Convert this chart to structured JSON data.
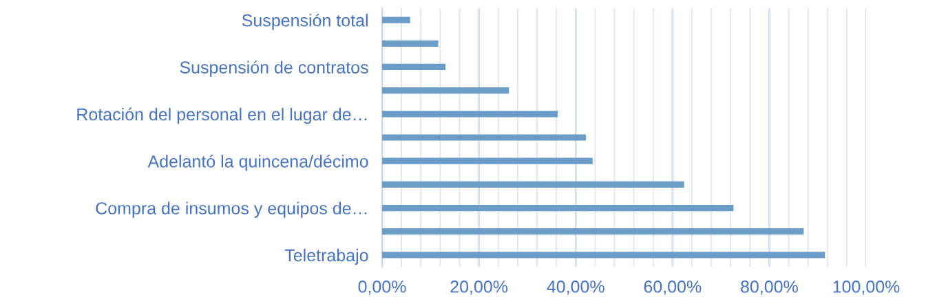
{
  "chart_data": {
    "type": "bar",
    "orientation": "horizontal",
    "categories": [
      "Suspensión total",
      null,
      "Suspensión de contratos",
      null,
      "Rotación del personal en el lugar de…",
      null,
      "Adelantó la quincena/décimo",
      null,
      "Compra de insumos y equipos de…",
      null,
      "Teletrabajo"
    ],
    "values": [
      5.8,
      11.6,
      13.1,
      26.2,
      36.3,
      42.1,
      43.5,
      62.4,
      72.6,
      87.1,
      91.5
    ],
    "color": "#6b9dc8",
    "xlim": [
      0,
      100
    ],
    "xticks": [
      {
        "value": 0,
        "label": "0,00%"
      },
      {
        "value": 4,
        "label": null
      },
      {
        "value": 8,
        "label": null
      },
      {
        "value": 12,
        "label": null
      },
      {
        "value": 16,
        "label": null
      },
      {
        "value": 20,
        "label": "20,00%"
      },
      {
        "value": 24,
        "label": null
      },
      {
        "value": 28,
        "label": null
      },
      {
        "value": 32,
        "label": null
      },
      {
        "value": 36,
        "label": null
      },
      {
        "value": 40,
        "label": "40,00%"
      },
      {
        "value": 44,
        "label": null
      },
      {
        "value": 48,
        "label": null
      },
      {
        "value": 52,
        "label": null
      },
      {
        "value": 56,
        "label": null
      },
      {
        "value": 60,
        "label": "60,00%"
      },
      {
        "value": 64,
        "label": null
      },
      {
        "value": 68,
        "label": null
      },
      {
        "value": 72,
        "label": null
      },
      {
        "value": 76,
        "label": null
      },
      {
        "value": 80,
        "label": "80,00%"
      },
      {
        "value": 84,
        "label": null
      },
      {
        "value": 88,
        "label": null
      },
      {
        "value": 92,
        "label": null
      },
      {
        "value": 96,
        "label": null
      },
      {
        "value": 100,
        "label": "100,00%"
      }
    ],
    "grid": "x"
  }
}
